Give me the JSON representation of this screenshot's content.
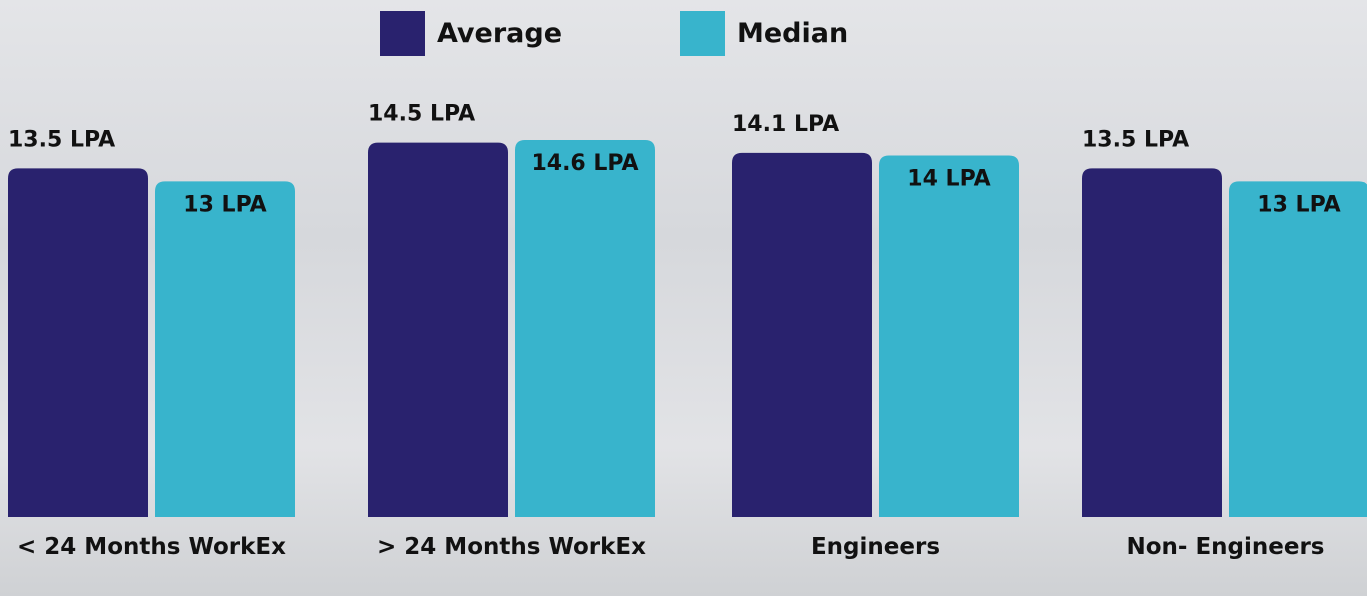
{
  "chart_data": {
    "type": "bar",
    "categories": [
      "< 24 Months WorkEx",
      "> 24 Months WorkEx",
      "Engineers",
      "Non- Engineers"
    ],
    "series": [
      {
        "name": "Average",
        "color": "#29226e",
        "values": [
          13.5,
          14.5,
          14.1,
          13.5
        ],
        "value_labels": [
          "13.5 LPA",
          "14.5 LPA",
          "14.1 LPA",
          "13.5 LPA"
        ]
      },
      {
        "name": "Median",
        "color": "#38b4cc",
        "values": [
          13,
          14.6,
          14,
          13
        ],
        "value_labels": [
          "13 LPA",
          "14.6 LPA",
          "14 LPA",
          "13 LPA"
        ]
      }
    ]
  }
}
